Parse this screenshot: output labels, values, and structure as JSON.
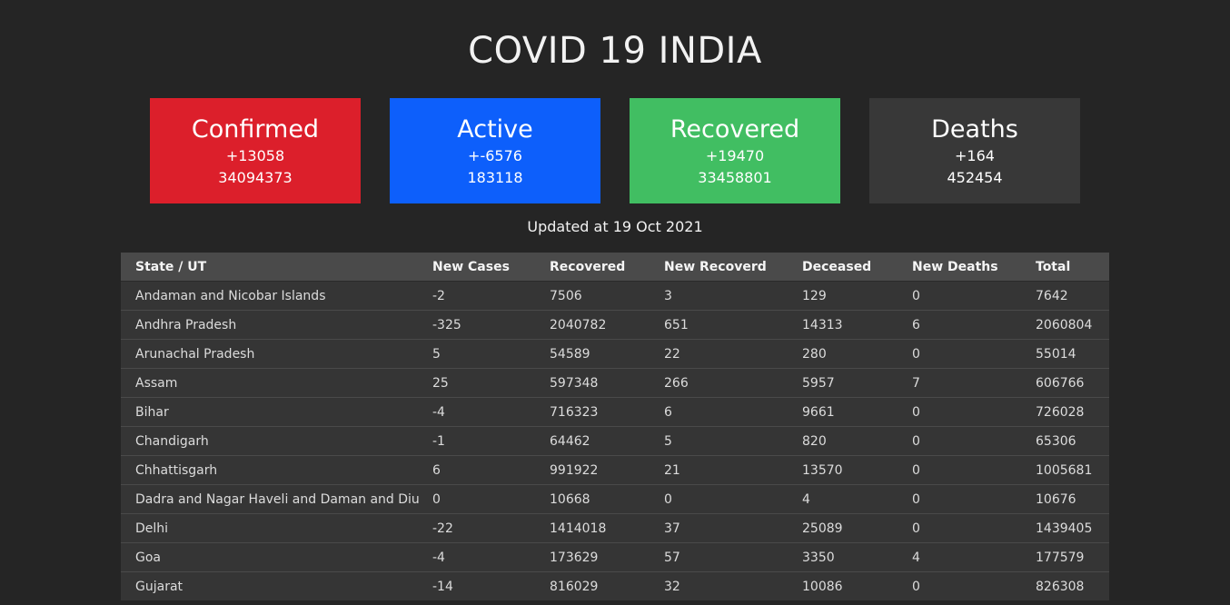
{
  "header": {
    "title": "COVID 19 INDIA"
  },
  "cards": {
    "confirmed": {
      "title": "Confirmed",
      "delta": "+13058",
      "total": "34094373",
      "color": "#dc1f2b"
    },
    "active": {
      "title": "Active",
      "delta": "+-6576",
      "total": "183118",
      "color": "#0d5ffb"
    },
    "recovered": {
      "title": "Recovered",
      "delta": "+19470",
      "total": "33458801",
      "color": "#41be62"
    },
    "deaths": {
      "title": "Deaths",
      "delta": "+164",
      "total": "452454",
      "color": "#383838"
    }
  },
  "updated_text": "Updated at 19 Oct 2021",
  "table": {
    "columns": [
      "State / UT",
      "New Cases",
      "Recovered",
      "New Recoverd",
      "Deceased",
      "New Deaths",
      "Total"
    ],
    "rows": [
      [
        "Andaman and Nicobar Islands",
        "-2",
        "7506",
        "3",
        "129",
        "0",
        "7642"
      ],
      [
        "Andhra Pradesh",
        "-325",
        "2040782",
        "651",
        "14313",
        "6",
        "2060804"
      ],
      [
        "Arunachal Pradesh",
        "5",
        "54589",
        "22",
        "280",
        "0",
        "55014"
      ],
      [
        "Assam",
        "25",
        "597348",
        "266",
        "5957",
        "7",
        "606766"
      ],
      [
        "Bihar",
        "-4",
        "716323",
        "6",
        "9661",
        "0",
        "726028"
      ],
      [
        "Chandigarh",
        "-1",
        "64462",
        "5",
        "820",
        "0",
        "65306"
      ],
      [
        "Chhattisgarh",
        "6",
        "991922",
        "21",
        "13570",
        "0",
        "1005681"
      ],
      [
        "Dadra and Nagar Haveli and Daman and Diu",
        "0",
        "10668",
        "0",
        "4",
        "0",
        "10676"
      ],
      [
        "Delhi",
        "-22",
        "1414018",
        "37",
        "25089",
        "0",
        "1439405"
      ],
      [
        "Goa",
        "-4",
        "173629",
        "57",
        "3350",
        "4",
        "177579"
      ],
      [
        "Gujarat",
        "-14",
        "816029",
        "32",
        "10086",
        "0",
        "826308"
      ]
    ]
  }
}
